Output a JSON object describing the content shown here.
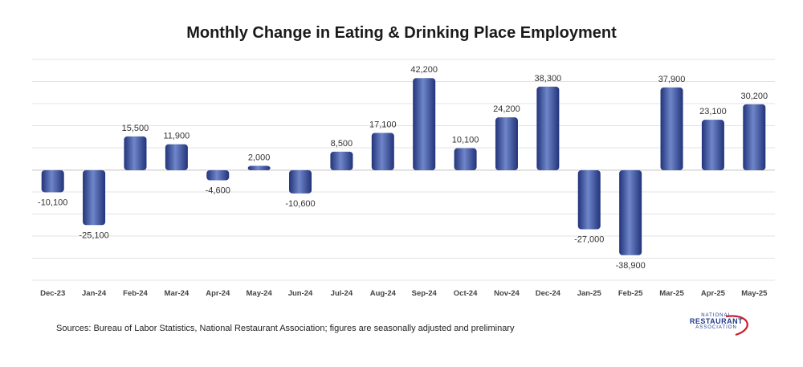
{
  "chart_data": {
    "type": "bar",
    "title": "Monthly Change in Eating & Drinking Place Employment",
    "categories": [
      "Dec-23",
      "Jan-24",
      "Feb-24",
      "Mar-24",
      "Apr-24",
      "May-24",
      "Jun-24",
      "Jul-24",
      "Aug-24",
      "Sep-24",
      "Oct-24",
      "Nov-24",
      "Dec-24",
      "Jan-25",
      "Feb-25",
      "Mar-25",
      "Apr-25",
      "May-25"
    ],
    "values": [
      -10100,
      -25100,
      15500,
      11900,
      -4600,
      2000,
      -10600,
      8500,
      17100,
      42200,
      10100,
      24200,
      38300,
      -27000,
      -38900,
      37900,
      23100,
      30200
    ],
    "labels": [
      "-10,100",
      "-25,100",
      "15,500",
      "11,900",
      "-4,600",
      "2,000",
      "-10,600",
      "8,500",
      "17,100",
      "42,200",
      "10,100",
      "24,200",
      "38,300",
      "-27,000",
      "-38,900",
      "37,900",
      "23,100",
      "30,200"
    ],
    "ylim": [
      -50000,
      50000
    ],
    "grid": true,
    "colors": {
      "bar": "#3a54a4",
      "bar_highlight": "#6f86c9",
      "bar_shadow": "#22337a",
      "grid": "#e3e3e3"
    }
  },
  "footer": {
    "source": "Sources: Bureau of Labor Statistics, National Restaurant Association; figures are seasonally adjusted and preliminary"
  },
  "logo": {
    "line1": "NATIONAL",
    "line2": "RESTAURANT",
    "line3": "ASSOCIATION"
  }
}
